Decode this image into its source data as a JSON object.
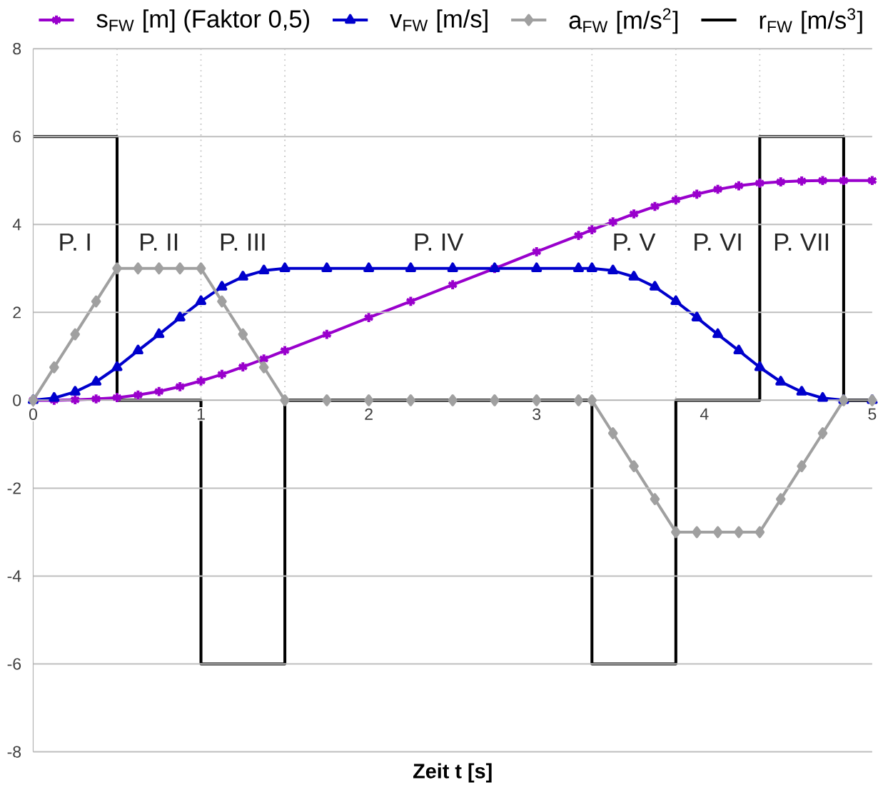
{
  "chart_data": {
    "type": "line",
    "xlabel": "Zeit t [s]",
    "xlim": [
      0,
      5
    ],
    "ylim": [
      -8,
      8
    ],
    "xticks": [
      0,
      1,
      2,
      3,
      4,
      5
    ],
    "yticks": [
      -8,
      -6,
      -4,
      -2,
      0,
      2,
      4,
      6,
      8
    ],
    "grid": "y",
    "legend": "top",
    "series": [
      {
        "name": "s$_{FW}$ [m] (Faktor 0,5)",
        "color": "#9900cc",
        "marker": "cross",
        "x": [
          0,
          0.125,
          0.25,
          0.375,
          0.5,
          0.625,
          0.75,
          0.875,
          1.0,
          1.125,
          1.25,
          1.375,
          1.5,
          1.75,
          2.0,
          2.25,
          2.5,
          2.75,
          3.0,
          3.25,
          3.33,
          3.455,
          3.58,
          3.705,
          3.83,
          3.955,
          4.08,
          4.205,
          4.33,
          4.455,
          4.58,
          4.705,
          4.83,
          5
        ],
        "values": [
          0,
          0,
          0.01,
          0.03,
          0.06,
          0.12,
          0.2,
          0.31,
          0.44,
          0.59,
          0.76,
          0.94,
          1.13,
          1.5,
          1.88,
          2.25,
          2.63,
          3.0,
          3.38,
          3.75,
          3.88,
          4.06,
          4.24,
          4.41,
          4.56,
          4.69,
          4.8,
          4.88,
          4.94,
          4.97,
          4.99,
          5,
          5,
          5
        ]
      },
      {
        "name": "v$_{FW}$ [m/s]",
        "color": "#0000cc",
        "marker": "triangle",
        "x": [
          0,
          0.125,
          0.25,
          0.375,
          0.5,
          0.625,
          0.75,
          0.875,
          1.0,
          1.125,
          1.25,
          1.375,
          1.5,
          1.75,
          2.0,
          2.25,
          2.5,
          2.75,
          3.0,
          3.25,
          3.33,
          3.455,
          3.58,
          3.705,
          3.83,
          3.955,
          4.08,
          4.205,
          4.33,
          4.455,
          4.58,
          4.705,
          4.83,
          5
        ],
        "values": [
          0,
          0.05,
          0.19,
          0.42,
          0.75,
          1.13,
          1.5,
          1.88,
          2.25,
          2.58,
          2.81,
          2.95,
          3,
          3,
          3,
          3,
          3,
          3,
          3,
          3,
          3,
          2.95,
          2.81,
          2.58,
          2.25,
          1.88,
          1.5,
          1.13,
          0.75,
          0.42,
          0.19,
          0.05,
          0,
          0
        ]
      },
      {
        "name": "a$_{FW}$ [m/s$^{2}$]",
        "color": "#a0a0a0",
        "marker": "diamond",
        "x": [
          0,
          0.125,
          0.25,
          0.375,
          0.5,
          0.625,
          0.75,
          0.875,
          1.0,
          1.125,
          1.25,
          1.375,
          1.5,
          1.75,
          2.0,
          2.25,
          2.5,
          2.75,
          3.0,
          3.25,
          3.33,
          3.455,
          3.58,
          3.705,
          3.83,
          3.955,
          4.08,
          4.205,
          4.33,
          4.455,
          4.58,
          4.705,
          4.83,
          5
        ],
        "values": [
          0,
          0.75,
          1.5,
          2.25,
          3,
          3,
          3,
          3,
          3,
          2.25,
          1.5,
          0.75,
          0,
          0,
          0,
          0,
          0,
          0,
          0,
          0,
          0,
          -0.75,
          -1.5,
          -2.25,
          -3,
          -3,
          -3,
          -3,
          -3,
          -2.25,
          -1.5,
          -0.75,
          0,
          0
        ]
      },
      {
        "name": "r$_{FW}$ [m/s$^{3}$]",
        "color": "#000000",
        "type": "step",
        "marker": "none",
        "x": [
          0,
          0.5,
          1.0,
          1.5,
          3.33,
          3.83,
          4.33,
          4.83,
          5
        ],
        "values": [
          6,
          0,
          -6,
          0,
          -6,
          0,
          6,
          0,
          0
        ]
      }
    ],
    "ref_lines": [
      {
        "axis": "x",
        "value": 0.5,
        "color": "#bfbfbf",
        "line_style": "dotted"
      },
      {
        "axis": "x",
        "value": 1.0,
        "color": "#bfbfbf",
        "line_style": "dotted"
      },
      {
        "axis": "x",
        "value": 1.5,
        "color": "#bfbfbf",
        "line_style": "dotted"
      },
      {
        "axis": "x",
        "value": 3.33,
        "color": "#bfbfbf",
        "line_style": "dotted"
      },
      {
        "axis": "x",
        "value": 3.83,
        "color": "#bfbfbf",
        "line_style": "dotted"
      },
      {
        "axis": "x",
        "value": 4.33,
        "color": "#bfbfbf",
        "line_style": "dotted"
      },
      {
        "axis": "x",
        "value": 4.83,
        "color": "#bfbfbf",
        "line_style": "dotted"
      }
    ],
    "annotations": [
      "P. I",
      "P. II",
      "P. III",
      "P. IV",
      "P. V",
      "P. VI",
      "P. VII"
    ]
  }
}
